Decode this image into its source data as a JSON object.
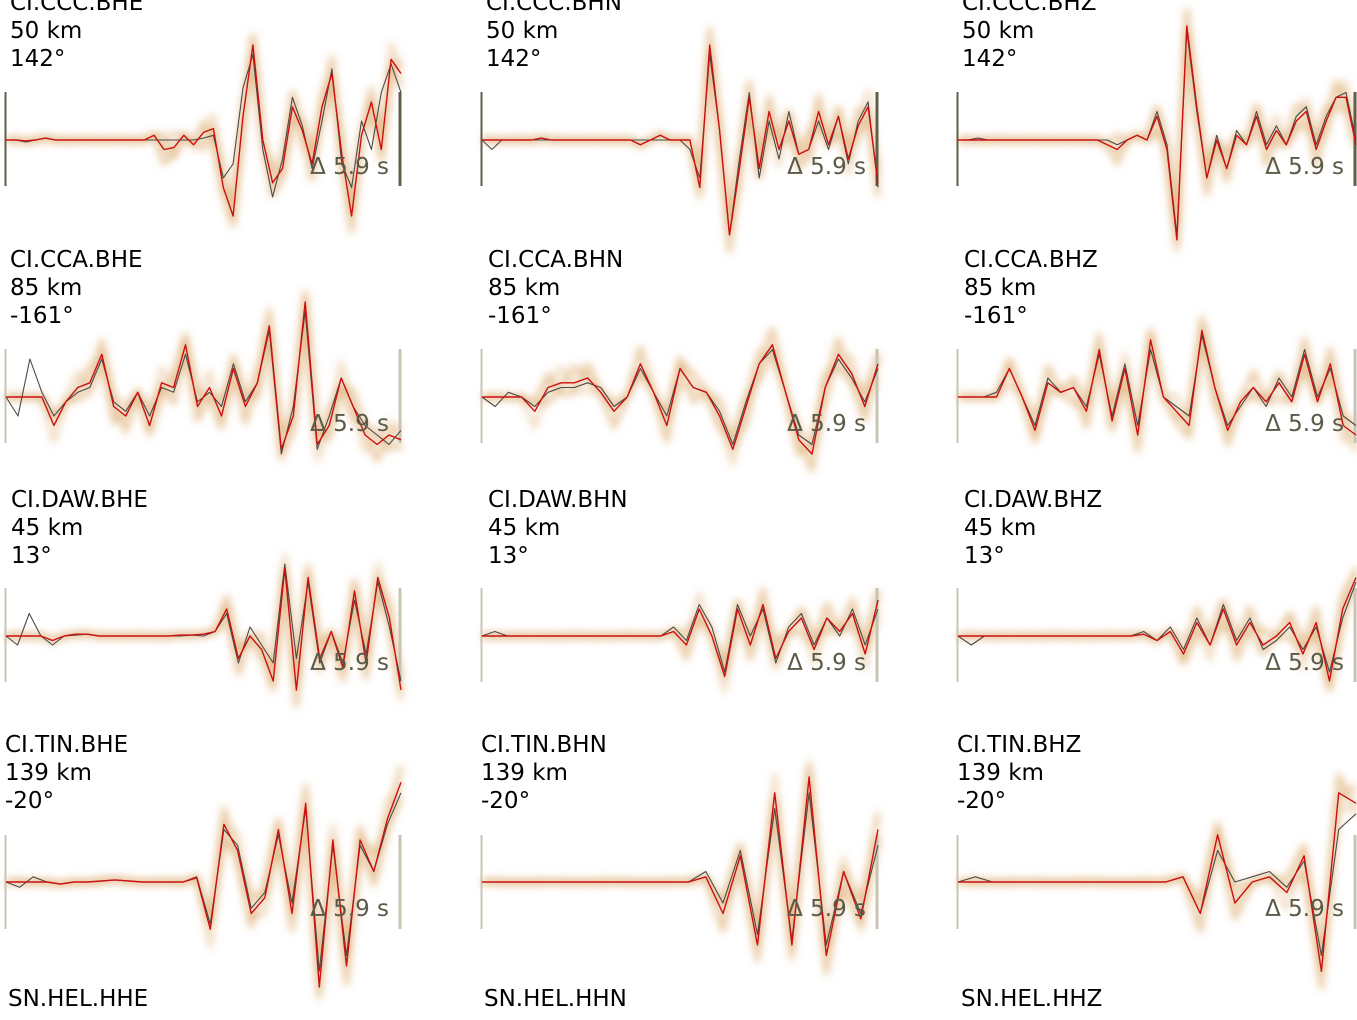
{
  "figure": {
    "background": "#ffffff"
  },
  "colors": {
    "observed": "#4a4a4a",
    "synthetic": "#cc1010",
    "ensemble": "#e0b27a",
    "scalebar": "#5e6048",
    "scalebar_light": "#c8c4b4",
    "annotation": "#5a5a48"
  },
  "chart_data": {
    "type": "line",
    "description_units": "normalized amplitude vs sample index",
    "time_shift_label": "Δ 5.9 s",
    "panels": [
      {
        "station": "CI.CCC.BHE",
        "distance": "50 km",
        "azimuth": "142°",
        "observed": [
          0,
          0,
          -0.02,
          0,
          0.02,
          0,
          0,
          0,
          0,
          0,
          0,
          0,
          0,
          0,
          0,
          0,
          0,
          0,
          0,
          0,
          0.02,
          0.05,
          -0.4,
          -0.25,
          0.55,
          0.9,
          -0.1,
          -0.6,
          -0.2,
          0.45,
          0.15,
          -0.3,
          0.2,
          0.75,
          -0.25,
          -0.5,
          0.2,
          -0.1,
          0.5,
          0.8,
          0.5
        ],
        "synthetic": [
          0,
          0,
          -0.01,
          0,
          0.02,
          0,
          0,
          0,
          0,
          0,
          0,
          0,
          0,
          0,
          0,
          0.05,
          -0.1,
          -0.08,
          0.05,
          -0.05,
          0.08,
          0.12,
          -0.5,
          -0.8,
          0.25,
          1.0,
          0.0,
          -0.45,
          -0.3,
          0.35,
          0.1,
          -0.25,
          0.35,
          0.7,
          -0.15,
          -0.8,
          0.05,
          0.4,
          -0.1,
          0.85,
          0.7
        ]
      },
      {
        "station": "CI.CCC.BHN",
        "distance": "50 km",
        "azimuth": "142°",
        "observed": [
          0,
          -0.1,
          0,
          0,
          0,
          0,
          0,
          0,
          0,
          0,
          0,
          0,
          0,
          0,
          0,
          0,
          0,
          0,
          0,
          0,
          0,
          -0.1,
          -0.4,
          0.9,
          0.1,
          -1.0,
          -0.2,
          0.5,
          -0.4,
          0.2,
          -0.2,
          0.3,
          -0.15,
          -0.1,
          0.2,
          -0.1,
          0.25,
          -0.25,
          0.2,
          0.4,
          -0.5
        ],
        "synthetic": [
          0,
          0,
          0,
          0,
          0,
          0,
          0.02,
          0,
          0,
          0,
          0,
          0,
          0,
          0,
          0,
          0,
          -0.05,
          0,
          0.05,
          0,
          0,
          0,
          -0.5,
          1.0,
          0.1,
          -1.0,
          -0.3,
          0.45,
          -0.3,
          0.3,
          -0.1,
          0.2,
          -0.15,
          -0.1,
          0.3,
          -0.05,
          0.25,
          -0.2,
          0.15,
          0.35,
          -0.45
        ]
      },
      {
        "station": "CI.CCC.BHZ",
        "distance": "50 km",
        "azimuth": "142°",
        "observed": [
          0,
          0,
          0.02,
          0,
          0,
          0,
          0,
          0,
          0,
          0,
          0,
          0,
          0,
          0,
          0,
          0,
          -0.05,
          0,
          0.05,
          0,
          0.3,
          -0.05,
          -1.0,
          1.15,
          0.3,
          -0.4,
          0.05,
          -0.3,
          0.1,
          -0.05,
          0.3,
          -0.05,
          0.15,
          -0.05,
          0.25,
          0.35,
          -0.05,
          0.25,
          0.45,
          0.5,
          0.0
        ],
        "synthetic": [
          0,
          0,
          0,
          0,
          0,
          0,
          0,
          0,
          0,
          0,
          0,
          0,
          0,
          0,
          0,
          -0.05,
          -0.1,
          0,
          0.05,
          0,
          0.25,
          -0.1,
          -1.05,
          1.2,
          0.35,
          -0.4,
          0.0,
          -0.3,
          0.05,
          -0.05,
          0.25,
          -0.1,
          0.1,
          -0.05,
          0.2,
          0.3,
          -0.1,
          0.2,
          0.45,
          0.45,
          -0.05
        ]
      },
      {
        "station": "CI.CCA.BHE",
        "distance": "85 km",
        "azimuth": "-161°",
        "observed": [
          0,
          -0.2,
          0.4,
          0.05,
          -0.2,
          -0.05,
          0.05,
          0.1,
          0.4,
          -0.05,
          -0.15,
          0.05,
          -0.2,
          0.1,
          0.05,
          0.45,
          -0.05,
          0.05,
          -0.1,
          0.35,
          -0.05,
          0.15,
          0.7,
          -0.6,
          -0.1,
          0.9,
          -0.55,
          -0.2,
          0.2,
          -0.1,
          -0.3,
          -0.4,
          -0.5,
          -0.35
        ],
        "synthetic": [
          0,
          0,
          0.0,
          0,
          -0.3,
          -0.05,
          0.1,
          0.15,
          0.45,
          -0.1,
          -0.2,
          0.05,
          -0.3,
          0.15,
          0.1,
          0.55,
          -0.1,
          0.1,
          -0.2,
          0.3,
          -0.1,
          0.15,
          0.75,
          -0.55,
          -0.2,
          1.0,
          -0.5,
          -0.3,
          0.2,
          -0.1,
          -0.4,
          -0.5,
          -0.4,
          -0.45
        ]
      },
      {
        "station": "CI.CCA.BHN",
        "distance": "85 km",
        "azimuth": "-161°",
        "observed": [
          0,
          -0.1,
          0.05,
          0,
          -0.1,
          0.05,
          0.1,
          0.1,
          0.15,
          0.1,
          -0.1,
          0.0,
          0.3,
          0.05,
          -0.2,
          0.3,
          0.1,
          0.05,
          -0.15,
          -0.5,
          -0.05,
          0.35,
          0.5,
          0.05,
          -0.4,
          -0.5,
          0.1,
          0.4,
          0.2,
          -0.05,
          0.3
        ],
        "synthetic": [
          0,
          0,
          0,
          0,
          -0.15,
          0.1,
          0.15,
          0.15,
          0.2,
          0.05,
          -0.15,
          0.0,
          0.35,
          0.05,
          -0.3,
          0.3,
          0.1,
          0.05,
          -0.2,
          -0.55,
          -0.1,
          0.35,
          0.55,
          0.05,
          -0.45,
          -0.6,
          0.1,
          0.45,
          0.25,
          -0.1,
          0.35
        ]
      },
      {
        "station": "CI.CCA.BHZ",
        "distance": "85 km",
        "azimuth": "-161°",
        "observed": [
          0,
          0,
          0,
          0.05,
          0.3,
          0.0,
          -0.3,
          0.2,
          0.05,
          0.1,
          -0.1,
          0.45,
          -0.2,
          0.35,
          -0.3,
          0.5,
          0.0,
          -0.1,
          -0.2,
          0.65,
          0.1,
          -0.3,
          -0.1,
          0.1,
          -0.1,
          0.2,
          0.0,
          0.5,
          0.0,
          0.3,
          -0.2,
          -0.3
        ],
        "synthetic": [
          0,
          0,
          0,
          0,
          0.3,
          0.0,
          -0.35,
          0.15,
          0.05,
          0.1,
          -0.15,
          0.5,
          -0.25,
          0.3,
          -0.4,
          0.6,
          0.0,
          -0.15,
          -0.3,
          0.7,
          0.1,
          -0.35,
          -0.05,
          0.1,
          -0.05,
          0.15,
          -0.05,
          0.45,
          -0.05,
          0.35,
          -0.3,
          -0.4
        ]
      },
      {
        "station": "CI.DAW.BHE",
        "distance": "45 km",
        "azimuth": "13°",
        "observed": [
          0,
          -0.1,
          0.25,
          0.0,
          -0.1,
          0,
          0.01,
          0.02,
          0,
          0,
          0,
          0,
          0,
          0,
          0,
          0,
          0.01,
          0,
          0.05,
          0.25,
          -0.3,
          0.1,
          -0.1,
          -0.3,
          0.8,
          -0.25,
          0.6,
          -0.3,
          0.05,
          -0.3,
          0.4,
          -0.2,
          0.6,
          0.1,
          -0.5
        ],
        "synthetic": [
          0,
          0,
          0,
          0,
          -0.05,
          0,
          0.02,
          0.02,
          0,
          0,
          0,
          0,
          0,
          0,
          0,
          0.01,
          0.01,
          0.02,
          0.05,
          0.3,
          -0.25,
          0.0,
          -0.15,
          -0.5,
          0.75,
          -0.6,
          0.65,
          -0.25,
          0.05,
          -0.35,
          0.5,
          -0.3,
          0.65,
          0.2,
          -0.6
        ]
      },
      {
        "station": "CI.DAW.BHN",
        "distance": "45 km",
        "azimuth": "13°",
        "observed": [
          0,
          0.05,
          0,
          0,
          0,
          0,
          0,
          0,
          0,
          0,
          0,
          0,
          0,
          0,
          0,
          0.1,
          -0.05,
          0.35,
          0.1,
          -0.4,
          0.35,
          0.0,
          0.3,
          -0.3,
          0.1,
          0.25,
          -0.1,
          0.2,
          0.0,
          0.3,
          -0.1,
          0.3
        ],
        "synthetic": [
          0,
          0,
          0,
          0,
          0,
          0,
          0,
          0,
          0,
          0,
          0,
          0,
          0,
          0,
          0,
          0.05,
          -0.1,
          0.3,
          0.0,
          -0.45,
          0.3,
          -0.1,
          0.35,
          -0.25,
          0.05,
          0.2,
          -0.15,
          0.2,
          0.05,
          0.25,
          -0.2,
          0.4
        ]
      },
      {
        "station": "CI.DAW.BHZ",
        "distance": "45 km",
        "azimuth": "13°",
        "observed": [
          0,
          -0.1,
          0,
          0,
          0,
          0,
          0,
          0,
          0,
          0,
          0,
          0,
          0,
          0,
          0.05,
          -0.05,
          0.1,
          -0.15,
          0.2,
          -0.1,
          0.35,
          -0.05,
          0.2,
          -0.15,
          -0.05,
          0.1,
          -0.15,
          0.1,
          -0.4,
          0.2,
          0.6
        ],
        "synthetic": [
          0,
          0,
          0,
          0,
          0,
          0,
          0,
          0,
          0,
          0,
          0,
          0,
          0,
          0,
          0.02,
          -0.05,
          0.05,
          -0.2,
          0.15,
          -0.1,
          0.3,
          -0.1,
          0.15,
          -0.1,
          0.0,
          0.15,
          -0.2,
          0.15,
          -0.5,
          0.3,
          0.65
        ]
      },
      {
        "station": "CI.TIN.BHE",
        "distance": "139 km",
        "azimuth": "-20°",
        "observed": [
          0,
          -0.05,
          0.05,
          0,
          -0.02,
          0,
          0,
          0.01,
          0.02,
          0.01,
          0,
          0,
          0,
          0,
          0.05,
          -0.4,
          0.5,
          0.35,
          -0.25,
          -0.1,
          0.45,
          -0.2,
          0.7,
          -0.85,
          0.35,
          -0.7,
          0.35,
          0.1,
          0.55,
          0.85
        ],
        "synthetic": [
          0,
          0,
          0,
          0,
          -0.02,
          0,
          0,
          0.01,
          0.02,
          0.01,
          0,
          0,
          0,
          0,
          0.04,
          -0.45,
          0.55,
          0.3,
          -0.3,
          -0.15,
          0.5,
          -0.3,
          0.75,
          -1.0,
          0.4,
          -0.8,
          0.4,
          0.1,
          0.6,
          0.95
        ]
      },
      {
        "station": "CI.TIN.BHN",
        "distance": "139 km",
        "azimuth": "-20°",
        "observed": [
          0,
          0,
          0,
          0,
          0,
          0,
          0,
          0,
          0,
          0,
          0,
          0,
          0,
          0.1,
          -0.2,
          0.3,
          -0.5,
          0.7,
          -0.55,
          0.85,
          -0.6,
          0.1,
          -0.3,
          0.35
        ],
        "synthetic": [
          0,
          0,
          0,
          0,
          0,
          0,
          0,
          0,
          0,
          0,
          0,
          0,
          0,
          0.05,
          -0.3,
          0.25,
          -0.6,
          0.85,
          -0.6,
          1.0,
          -0.7,
          0.1,
          -0.35,
          0.5
        ]
      },
      {
        "station": "CI.TIN.BHZ",
        "distance": "139 km",
        "azimuth": "-20°",
        "observed": [
          0,
          0.05,
          0,
          0,
          0,
          0,
          0,
          0,
          0,
          0,
          0,
          0,
          0,
          0.05,
          -0.3,
          0.3,
          0.0,
          0.05,
          0.1,
          -0.05,
          0.2,
          -0.7,
          0.5,
          0.65
        ],
        "synthetic": [
          0,
          0,
          0,
          0,
          0,
          0,
          0,
          0,
          0,
          0,
          0,
          0,
          0,
          0.05,
          -0.3,
          0.45,
          -0.2,
          0.0,
          0.05,
          -0.1,
          0.25,
          -0.85,
          0.85,
          0.75
        ]
      },
      {
        "station": "SN.HEL.HHE",
        "distance": "",
        "azimuth": "",
        "observed": [],
        "synthetic": []
      },
      {
        "station": "SN.HEL.HHN",
        "distance": "",
        "azimuth": "",
        "observed": [],
        "synthetic": []
      },
      {
        "station": "SN.HEL.HHZ",
        "distance": "",
        "azimuth": "",
        "observed": [],
        "synthetic": []
      }
    ]
  }
}
